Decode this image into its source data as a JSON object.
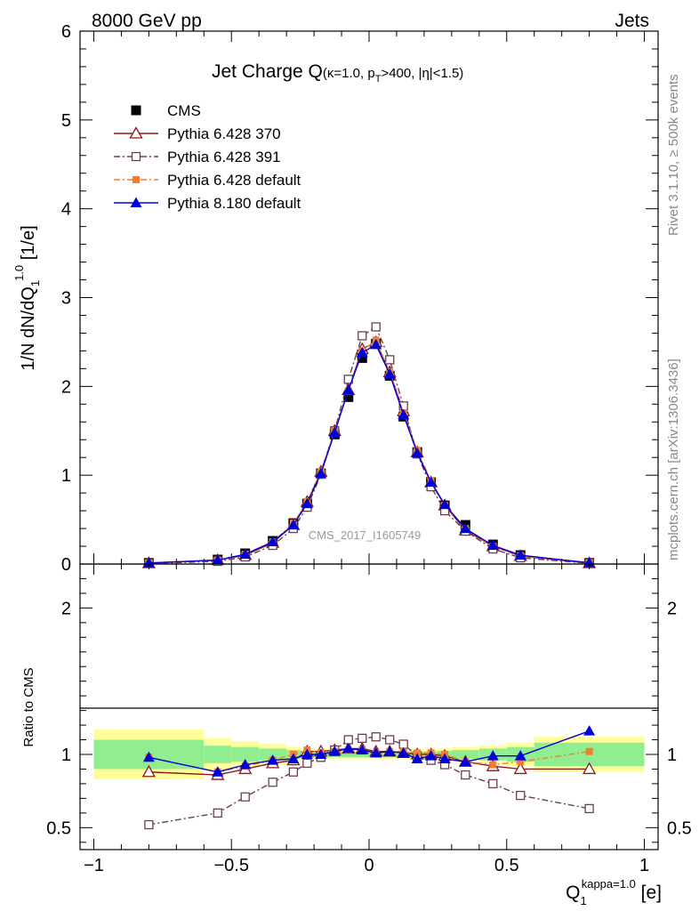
{
  "header": {
    "left": "8000 GeV pp",
    "right": "Jets"
  },
  "side_labels": {
    "rivet": "Rivet 3.1.10, ≥ 500k events",
    "mcplots": "mcplots.cern.ch [arXiv:1306.3436]"
  },
  "watermark": "CMS_2017_I1605749",
  "colors": {
    "cms": "#000000",
    "py370": "#8b1a1a",
    "py391": "#6b3f4f",
    "py6def": "#f08030",
    "py8def": "#0000d8",
    "band_green": "#90ee90",
    "band_yellow": "#ffff99"
  },
  "chart_data": [
    {
      "type": "line",
      "title": {
        "main": "Jet Charge Q",
        "sub_pre": "(κ=1.0, p",
        "sub_sub": "T",
        "sub_post": ">400, |η|<1.5)"
      },
      "ylabel": {
        "pre": "1/N dN/dQ",
        "sub": "1",
        "sup": "1.0",
        "post": " [1/e]"
      },
      "xlim": [
        -1.05,
        1.05
      ],
      "ylim": [
        0,
        6
      ],
      "yticks": [
        0,
        1,
        2,
        3,
        4,
        5,
        6
      ],
      "ytick_labels": [
        "0",
        "1",
        "2",
        "3",
        "4",
        "5",
        "6"
      ],
      "legend_position": "top-left",
      "x": [
        -0.8,
        -0.55,
        -0.45,
        -0.35,
        -0.275,
        -0.225,
        -0.175,
        -0.125,
        -0.075,
        -0.025,
        0.025,
        0.075,
        0.125,
        0.175,
        0.225,
        0.275,
        0.35,
        0.45,
        0.55,
        0.8
      ],
      "series": [
        {
          "name": "CMS",
          "key": "cms",
          "marker": "square-filled",
          "line": "none",
          "values": [
            0.012,
            0.05,
            0.12,
            0.26,
            0.46,
            0.68,
            1.02,
            1.46,
            1.88,
            2.32,
            2.48,
            2.12,
            1.66,
            1.26,
            0.92,
            0.66,
            0.44,
            0.22,
            0.1,
            0.012
          ]
        },
        {
          "name": "Pythia 6.428 370",
          "key": "py370",
          "marker": "triangle-open",
          "line": "solid",
          "values": [
            0.01,
            0.045,
            0.1,
            0.24,
            0.44,
            0.7,
            1.04,
            1.5,
            1.96,
            2.42,
            2.5,
            2.16,
            1.72,
            1.26,
            0.92,
            0.66,
            0.38,
            0.2,
            0.09,
            0.01
          ]
        },
        {
          "name": "Pythia 6.428 391",
          "key": "py391",
          "marker": "square-open",
          "line": "dashdot",
          "values": [
            0.006,
            0.03,
            0.08,
            0.21,
            0.4,
            0.64,
            1.01,
            1.5,
            2.08,
            2.57,
            2.67,
            2.3,
            1.78,
            1.24,
            0.87,
            0.6,
            0.37,
            0.17,
            0.07,
            0.008
          ]
        },
        {
          "name": "Pythia 6.428 default",
          "key": "py6def",
          "marker": "square-filled-small",
          "line": "dashdot",
          "values": [
            0.012,
            0.045,
            0.11,
            0.25,
            0.46,
            0.7,
            1.04,
            1.5,
            1.95,
            2.4,
            2.52,
            2.16,
            1.7,
            1.28,
            0.94,
            0.66,
            0.4,
            0.2,
            0.095,
            0.012
          ]
        },
        {
          "name": "Pythia 8.180 default",
          "key": "py8def",
          "marker": "triangle-filled",
          "line": "solid",
          "values": [
            0.012,
            0.044,
            0.11,
            0.25,
            0.44,
            0.68,
            1.02,
            1.48,
            1.96,
            2.38,
            2.47,
            2.14,
            1.68,
            1.25,
            0.92,
            0.67,
            0.4,
            0.21,
            0.1,
            0.014
          ]
        }
      ]
    },
    {
      "type": "line",
      "ylabel": "Ratio to CMS",
      "xlabel": {
        "pre": "Q",
        "sub": "1",
        "sup": "kappa=1.0",
        "post": " [e]"
      },
      "xlim": [
        -1.05,
        1.05
      ],
      "ylim": [
        0.35,
        2.3
      ],
      "yticks": [
        0.5,
        1,
        2
      ],
      "ytick_labels": [
        "0.5",
        "1",
        "2"
      ],
      "xticks": [
        -1,
        -0.5,
        0,
        0.5,
        1
      ],
      "xtick_labels": [
        "−1",
        "−0.5",
        "0",
        "0.5",
        "1"
      ],
      "bands": {
        "edges": [
          -1,
          -0.6,
          -0.5,
          -0.4,
          -0.3,
          -0.25,
          -0.2,
          -0.15,
          -0.1,
          -0.05,
          0,
          0.05,
          0.1,
          0.15,
          0.2,
          0.25,
          0.3,
          0.4,
          0.5,
          0.6,
          1
        ],
        "green": [
          0.1,
          0.06,
          0.05,
          0.04,
          0.03,
          0.025,
          0.02,
          0.02,
          0.02,
          0.02,
          0.02,
          0.02,
          0.02,
          0.02,
          0.02,
          0.025,
          0.03,
          0.04,
          0.05,
          0.08
        ],
        "yellow": [
          0.17,
          0.11,
          0.09,
          0.07,
          0.05,
          0.04,
          0.035,
          0.03,
          0.03,
          0.03,
          0.03,
          0.03,
          0.03,
          0.035,
          0.035,
          0.04,
          0.05,
          0.06,
          0.08,
          0.12
        ]
      },
      "x": [
        -0.8,
        -0.55,
        -0.45,
        -0.35,
        -0.275,
        -0.225,
        -0.175,
        -0.125,
        -0.075,
        -0.025,
        0.025,
        0.075,
        0.125,
        0.175,
        0.225,
        0.275,
        0.35,
        0.45,
        0.55,
        0.8
      ],
      "series": [
        {
          "name": "Pythia 6.428 370",
          "key": "py370",
          "marker": "triangle-open",
          "line": "solid",
          "values": [
            0.88,
            0.86,
            0.9,
            0.94,
            0.96,
            1.02,
            1.02,
            1.03,
            1.04,
            1.04,
            1.02,
            1.02,
            1.01,
            1.0,
            1.0,
            0.99,
            0.95,
            0.92,
            0.9,
            0.9
          ]
        },
        {
          "name": "Pythia 6.428 391",
          "key": "py391",
          "marker": "square-open",
          "line": "dashdot",
          "values": [
            0.52,
            0.6,
            0.71,
            0.81,
            0.88,
            0.94,
            0.98,
            1.03,
            1.1,
            1.11,
            1.12,
            1.1,
            1.07,
            0.99,
            0.96,
            0.93,
            0.86,
            0.8,
            0.72,
            0.63
          ]
        },
        {
          "name": "Pythia 6.428 default",
          "key": "py6def",
          "marker": "square-filled-small",
          "line": "dashdot",
          "values": [
            0.98,
            0.88,
            0.92,
            0.96,
            1.0,
            1.03,
            1.01,
            1.02,
            1.03,
            1.03,
            1.01,
            1.02,
            1.02,
            1.01,
            1.01,
            1.0,
            0.95,
            0.93,
            0.95,
            1.02
          ]
        },
        {
          "name": "Pythia 8.180 default",
          "key": "py8def",
          "marker": "triangle-filled",
          "line": "solid",
          "values": [
            0.98,
            0.88,
            0.93,
            0.96,
            0.97,
            1.0,
            1.0,
            1.02,
            1.04,
            1.03,
            1.01,
            1.02,
            1.01,
            0.97,
            0.99,
            0.97,
            0.95,
            0.99,
            0.99,
            1.16
          ]
        }
      ]
    }
  ]
}
